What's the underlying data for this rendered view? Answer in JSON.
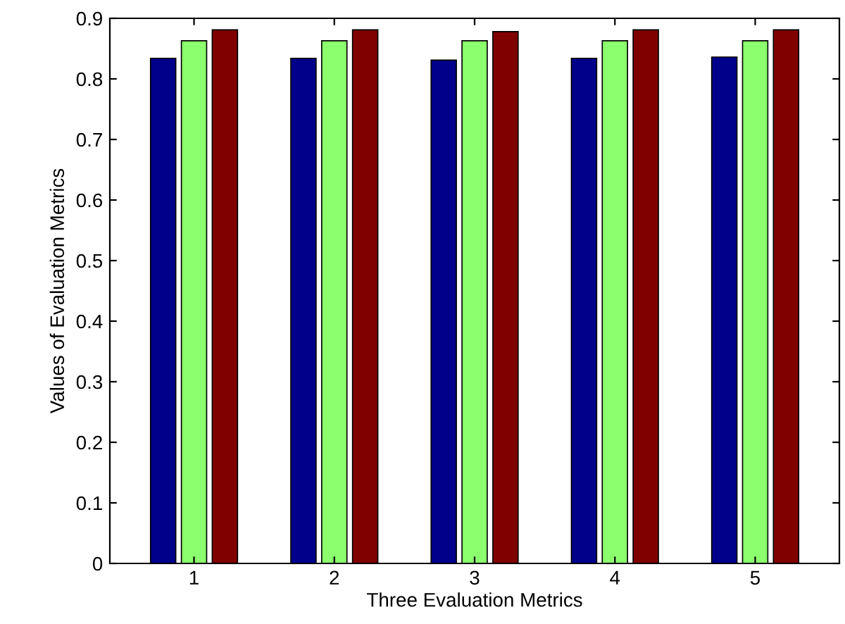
{
  "chart_data": {
    "type": "bar",
    "xlabel": "Three Evaluation Metrics",
    "ylabel": "Values of Evaluation Metrics",
    "categories": [
      "1",
      "2",
      "3",
      "4",
      "5"
    ],
    "series": [
      {
        "color": "#00008b",
        "values": [
          0.834,
          0.834,
          0.831,
          0.834,
          0.836
        ]
      },
      {
        "color": "#8cff6e",
        "values": [
          0.863,
          0.863,
          0.863,
          0.863,
          0.863
        ]
      },
      {
        "color": "#800000",
        "values": [
          0.881,
          0.881,
          0.878,
          0.881,
          0.881
        ]
      }
    ],
    "ylim": [
      0,
      0.9
    ],
    "yticks": [
      0,
      0.1,
      0.2,
      0.3,
      0.4,
      0.5,
      0.6,
      0.7,
      0.8,
      0.9
    ],
    "grid": false
  }
}
